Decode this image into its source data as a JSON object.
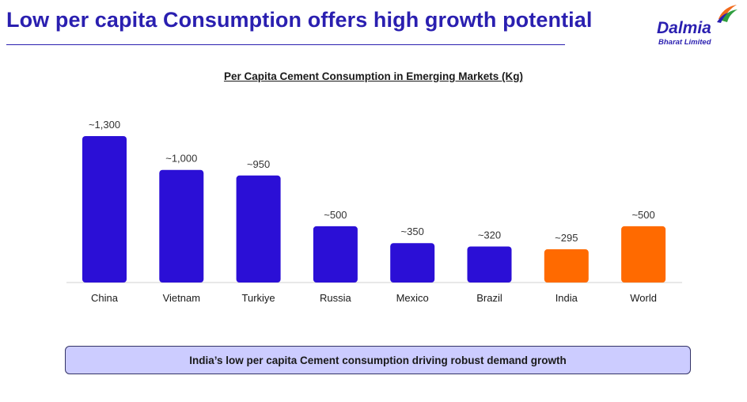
{
  "slide": {
    "title": "Low per capita Consumption offers high growth potential",
    "callout": "India’s low per capita Cement consumption driving robust demand growth"
  },
  "logo": {
    "name": "Dalmia",
    "subtitle": "Bharat Limited",
    "colors": [
      "#2a1fb0",
      "#f26a1b",
      "#2e9e3e"
    ]
  },
  "chart_data": {
    "type": "bar",
    "title": "Per Capita Cement Consumption in Emerging Markets (Kg)",
    "categories": [
      "China",
      "Vietnam",
      "Turkiye",
      "Russia",
      "Mexico",
      "Brazil",
      "India",
      "World"
    ],
    "values": [
      1300,
      1000,
      950,
      500,
      350,
      320,
      295,
      500
    ],
    "data_labels": [
      "~1,300",
      "~1,000",
      "~950",
      "~500",
      "~350",
      "~320",
      "~295",
      "~500"
    ],
    "bar_colors": [
      "#2b0fd6",
      "#2b0fd6",
      "#2b0fd6",
      "#2b0fd6",
      "#2b0fd6",
      "#2b0fd6",
      "#ff6a00",
      "#ff6a00"
    ],
    "xlabel": "",
    "ylabel": "",
    "ylim": [
      0,
      1300
    ],
    "grid": false,
    "legend": "none"
  }
}
